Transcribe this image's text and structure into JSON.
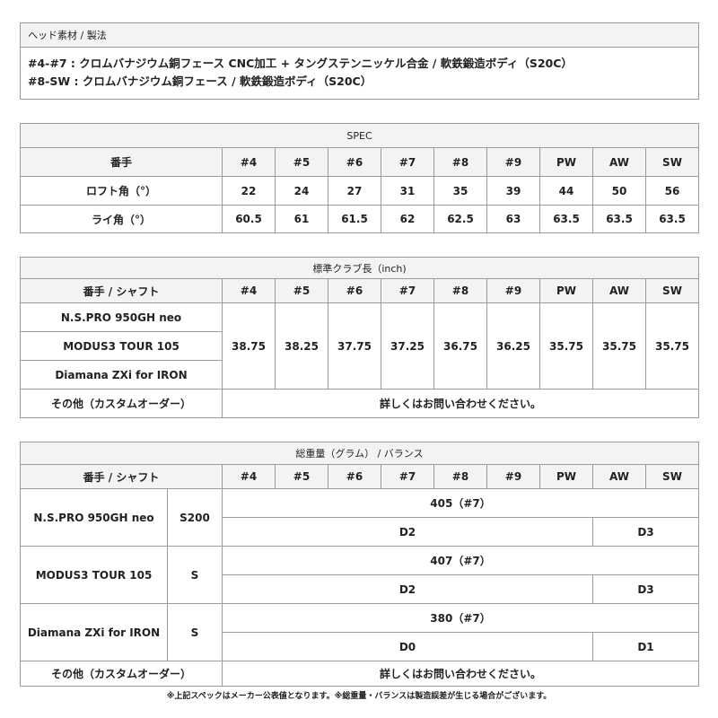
{
  "material": {
    "title": "ヘッド素材 / 製法",
    "lines": [
      "#4-#7 : クロムバナジウム銅フェース CNC加工 + タングステンニッケル合金 / 軟鉄鍛造ボディ（S20C）",
      "#8-SW : クロムバナジウム銅フェース / 軟鉄鍛造ボディ（S20C）"
    ]
  },
  "clubs": [
    "#4",
    "#5",
    "#6",
    "#7",
    "#8",
    "#9",
    "PW",
    "AW",
    "SW"
  ],
  "spec": {
    "title": "SPEC",
    "row_label": "番手",
    "loft_label": "ロフト角（°）",
    "loft": [
      "22",
      "24",
      "27",
      "31",
      "35",
      "39",
      "44",
      "50",
      "56"
    ],
    "lie_label": "ライ角（°）",
    "lie": [
      "60.5",
      "61",
      "61.5",
      "62",
      "62.5",
      "63",
      "63.5",
      "63.5",
      "63.5"
    ]
  },
  "length": {
    "title": "標準クラブ長（inch)",
    "header": "番手 / シャフト",
    "shafts": [
      "N.S.PRO 950GH neo",
      "MODUS3 TOUR 105",
      "Diamana ZXi for IRON"
    ],
    "values": [
      "38.75",
      "38.25",
      "37.75",
      "37.25",
      "36.75",
      "36.25",
      "35.75",
      "35.75",
      "35.75"
    ],
    "other_label": "その他（カスタムオーダー）",
    "other_value": "詳しくはお問い合わせください。"
  },
  "weight": {
    "title": "総重量（グラム） / バランス",
    "header": "番手 / シャフト",
    "rows": [
      {
        "shaft": "N.S.PRO 950GH neo",
        "flex": "S200",
        "weight": "405（#7）",
        "bal1": "D2",
        "bal2": "D3"
      },
      {
        "shaft": "MODUS3 TOUR 105",
        "flex": "S",
        "weight": "407（#7）",
        "bal1": "D2",
        "bal2": "D3"
      },
      {
        "shaft": "Diamana ZXi for IRON",
        "flex": "S",
        "weight": "380（#7）",
        "bal1": "D0",
        "bal2": "D1"
      }
    ],
    "other_label": "その他（カスタムオーダー）",
    "other_value": "詳しくはお問い合わせください。"
  },
  "note": "※上記スペックはメーカー公表値となります。※総重量・バランスは製造誤差が生じる場合がございます。"
}
